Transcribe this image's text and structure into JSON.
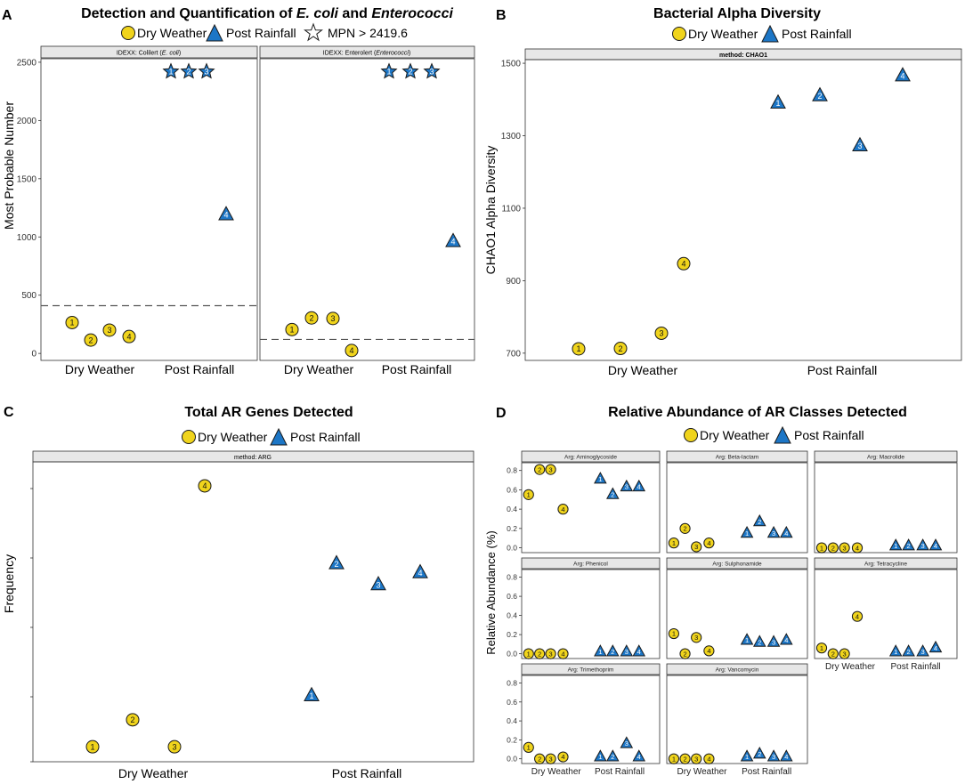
{
  "colors": {
    "dry": "#F0D41C",
    "post": "#1C76C6",
    "stroke": "#1a1a1a",
    "strip": "#E7E7E7",
    "dashed": "#555555"
  },
  "legend": {
    "dry": "Dry Weather",
    "post": "Post Rainfall",
    "star": "MPN > 2419.6"
  },
  "panelA": {
    "letter": "A",
    "title_prefix": "Detection and Quantification of ",
    "title_italic1": "E. coli",
    "title_mid": " and ",
    "title_italic2": "Enterococci"
  },
  "panelB": {
    "letter": "B",
    "title": "Bacterial Alpha Diversity"
  },
  "panelC": {
    "letter": "C",
    "title": "Total AR Genes Detected"
  },
  "panelD": {
    "letter": "D",
    "title": "Relative Abundance of AR Classes Detected"
  },
  "chart_data": [
    {
      "id": "A",
      "type": "scatter",
      "title": "Detection and Quantification of E. coli and Enterococci",
      "ylabel": "Most Probable Number",
      "ylim": [
        -60,
        2530
      ],
      "yticks": [
        0,
        500,
        1000,
        1500,
        2000,
        2500
      ],
      "categories": [
        "Dry Weather",
        "Post Rainfall"
      ],
      "facets": [
        {
          "strip_prefix": "IDEXX: Colilert (",
          "strip_italic": "E. coli",
          "strip_suffix": ")",
          "threshold": 410,
          "points": [
            {
              "group": "Dry Weather",
              "label": "1",
              "y": 265,
              "shape": "circle"
            },
            {
              "group": "Dry Weather",
              "label": "2",
              "y": 115,
              "shape": "circle"
            },
            {
              "group": "Dry Weather",
              "label": "3",
              "y": 200,
              "shape": "circle"
            },
            {
              "group": "Dry Weather",
              "label": "4",
              "y": 145,
              "shape": "circle"
            },
            {
              "group": "Post Rainfall",
              "label": "1",
              "y": 2419.6,
              "shape": "star"
            },
            {
              "group": "Post Rainfall",
              "label": "2",
              "y": 2419.6,
              "shape": "star"
            },
            {
              "group": "Post Rainfall",
              "label": "3",
              "y": 2419.6,
              "shape": "star"
            },
            {
              "group": "Post Rainfall",
              "label": "4",
              "y": 1190,
              "shape": "triangle"
            }
          ]
        },
        {
          "strip_prefix": "IDEXX: Enterolert (",
          "strip_italic": "Enterococci",
          "strip_suffix": ")",
          "threshold": 120,
          "points": [
            {
              "group": "Dry Weather",
              "label": "1",
              "y": 205,
              "shape": "circle"
            },
            {
              "group": "Dry Weather",
              "label": "2",
              "y": 305,
              "shape": "circle"
            },
            {
              "group": "Dry Weather",
              "label": "3",
              "y": 300,
              "shape": "circle"
            },
            {
              "group": "Dry Weather",
              "label": "4",
              "y": 25,
              "shape": "circle"
            },
            {
              "group": "Post Rainfall",
              "label": "1",
              "y": 2419.6,
              "shape": "star"
            },
            {
              "group": "Post Rainfall",
              "label": "2",
              "y": 2419.6,
              "shape": "star"
            },
            {
              "group": "Post Rainfall",
              "label": "3",
              "y": 2419.6,
              "shape": "star"
            },
            {
              "group": "Post Rainfall",
              "label": "4",
              "y": 960,
              "shape": "triangle"
            }
          ]
        }
      ]
    },
    {
      "id": "B",
      "type": "scatter",
      "title": "Bacterial Alpha Diversity",
      "strip": "method: CHAO1",
      "ylabel": "CHAO1 Alpha Diversity",
      "ylim": [
        680,
        1510
      ],
      "yticks": [
        700,
        900,
        1100,
        1300,
        1500
      ],
      "categories": [
        "Dry Weather",
        "Post Rainfall"
      ],
      "points": [
        {
          "group": "Dry Weather",
          "label": "1",
          "y": 712
        },
        {
          "group": "Dry Weather",
          "label": "2",
          "y": 713
        },
        {
          "group": "Dry Weather",
          "label": "3",
          "y": 755
        },
        {
          "group": "Dry Weather",
          "label": "4",
          "y": 947
        },
        {
          "group": "Post Rainfall",
          "label": "1",
          "y": 1390
        },
        {
          "group": "Post Rainfall",
          "label": "2",
          "y": 1410
        },
        {
          "group": "Post Rainfall",
          "label": "3",
          "y": 1272
        },
        {
          "group": "Post Rainfall",
          "label": "4",
          "y": 1465
        }
      ]
    },
    {
      "id": "C",
      "type": "scatter",
      "title": "Total AR Genes Detected",
      "strip": "method: ARG",
      "ylabel": "Frequency",
      "ylim": [
        0,
        100
      ],
      "categories": [
        "Dry Weather",
        "Post Rainfall"
      ],
      "points": [
        {
          "group": "Dry Weather",
          "label": "1",
          "y": 5
        },
        {
          "group": "Dry Weather",
          "label": "2",
          "y": 14
        },
        {
          "group": "Dry Weather",
          "label": "3",
          "y": 5
        },
        {
          "group": "Dry Weather",
          "label": "4",
          "y": 92
        },
        {
          "group": "Post Rainfall",
          "label": "1",
          "y": 22
        },
        {
          "group": "Post Rainfall",
          "label": "2",
          "y": 66
        },
        {
          "group": "Post Rainfall",
          "label": "3",
          "y": 59
        },
        {
          "group": "Post Rainfall",
          "label": "4",
          "y": 63
        }
      ]
    },
    {
      "id": "D",
      "type": "scatter",
      "title": "Relative Abundance of AR Classes Detected",
      "ylabel": "Relative Abundance (%)",
      "ylim": [
        -0.05,
        0.88
      ],
      "yticks": [
        "0.0",
        "0.2",
        "0.4",
        "0.6",
        "0.8"
      ],
      "categories": [
        "Dry Weather",
        "Post Rainfall"
      ],
      "facets": [
        {
          "strip": "Arg: Aminoglycoside",
          "dry": [
            0.55,
            0.81,
            0.81,
            0.4
          ],
          "post": [
            0.71,
            0.55,
            0.63,
            0.63
          ]
        },
        {
          "strip": "Arg: Beta-lactam",
          "dry": [
            0.05,
            0.2,
            0.01,
            0.05
          ],
          "post": [
            0.15,
            0.27,
            0.15,
            0.15
          ]
        },
        {
          "strip": "Arg: Macrolide",
          "dry": [
            0.0,
            0.0,
            0.0,
            0.0
          ],
          "post": [
            0.02,
            0.02,
            0.02,
            0.02
          ]
        },
        {
          "strip": "Arg: Phenicol",
          "dry": [
            0.0,
            0.0,
            0.0,
            0.0
          ],
          "post": [
            0.02,
            0.02,
            0.02,
            0.02
          ]
        },
        {
          "strip": "Arg: Sulphonamide",
          "dry": [
            0.21,
            0.0,
            0.17,
            0.03
          ],
          "post": [
            0.14,
            0.12,
            0.12,
            0.14
          ]
        },
        {
          "strip": "Arg: Tetracycline",
          "dry": [
            0.06,
            0.0,
            0.0,
            0.39
          ],
          "post": [
            0.02,
            0.02,
            0.02,
            0.06
          ]
        },
        {
          "strip": "Arg: Trimethoprim",
          "dry": [
            0.12,
            0.0,
            0.0,
            0.02
          ],
          "post": [
            0.02,
            0.02,
            0.16,
            0.02
          ]
        },
        {
          "strip": "Arg: Vancomycin",
          "dry": [
            0.0,
            0.0,
            0.0,
            0.0
          ],
          "post": [
            0.02,
            0.05,
            0.02,
            0.02
          ]
        }
      ]
    }
  ]
}
